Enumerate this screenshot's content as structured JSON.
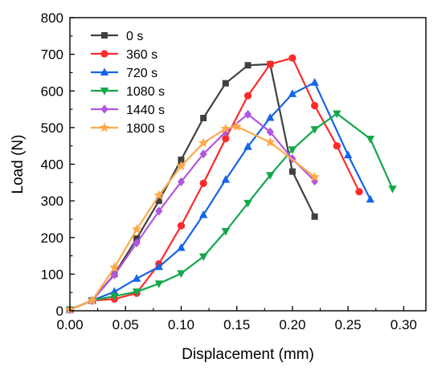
{
  "chart_data": {
    "type": "line",
    "xlabel": "Displacement (mm)",
    "ylabel": "Load (N)",
    "xlim": [
      0,
      0.32
    ],
    "ylim": [
      0,
      800
    ],
    "xticks": [
      "0.00",
      "0.05",
      "0.10",
      "0.15",
      "0.20",
      "0.25",
      "0.30"
    ],
    "yticks": [
      "0",
      "100",
      "200",
      "300",
      "400",
      "500",
      "600",
      "700",
      "800"
    ],
    "grid": false,
    "legend_position": "top-left",
    "series": [
      {
        "name": "0 s",
        "color": "#404040",
        "marker": "square",
        "x": [
          0,
          0.02,
          0.04,
          0.06,
          0.08,
          0.1,
          0.12,
          0.14,
          0.16,
          0.18,
          0.2,
          0.22
        ],
        "y": [
          3,
          28,
          100,
          197,
          300,
          412,
          526,
          621,
          670,
          673,
          380,
          257
        ]
      },
      {
        "name": "360 s",
        "color": "#ff2a2a",
        "marker": "circle",
        "x": [
          0,
          0.02,
          0.04,
          0.06,
          0.08,
          0.1,
          0.12,
          0.14,
          0.16,
          0.18,
          0.2,
          0.22,
          0.24,
          0.26
        ],
        "y": [
          3,
          28,
          32,
          48,
          128,
          232,
          348,
          470,
          587,
          673,
          690,
          560,
          450,
          325
        ]
      },
      {
        "name": "720 s",
        "color": "#1565e8",
        "marker": "triangle-up",
        "x": [
          0,
          0.02,
          0.04,
          0.06,
          0.08,
          0.1,
          0.12,
          0.14,
          0.16,
          0.18,
          0.2,
          0.22,
          0.25,
          0.27
        ],
        "y": [
          3,
          28,
          52,
          88,
          120,
          172,
          262,
          358,
          448,
          527,
          592,
          623,
          425,
          304
        ]
      },
      {
        "name": "1080 s",
        "color": "#12a84a",
        "marker": "triangle-down",
        "x": [
          0,
          0.02,
          0.04,
          0.06,
          0.08,
          0.1,
          0.12,
          0.14,
          0.16,
          0.18,
          0.2,
          0.22,
          0.24,
          0.27,
          0.29
        ],
        "y": [
          3,
          28,
          40,
          52,
          74,
          102,
          148,
          217,
          294,
          370,
          440,
          495,
          538,
          469,
          333
        ]
      },
      {
        "name": "1440 s",
        "color": "#b156e0",
        "marker": "diamond",
        "x": [
          0,
          0.02,
          0.04,
          0.06,
          0.08,
          0.1,
          0.12,
          0.14,
          0.16,
          0.18,
          0.2,
          0.22
        ],
        "y": [
          3,
          28,
          98,
          185,
          272,
          352,
          428,
          488,
          536,
          488,
          415,
          354
        ]
      },
      {
        "name": "1800 s",
        "color": "#ffa94a",
        "marker": "star",
        "x": [
          0,
          0.02,
          0.04,
          0.06,
          0.08,
          0.1,
          0.12,
          0.14,
          0.15,
          0.18,
          0.22
        ],
        "y": [
          3,
          28,
          118,
          222,
          315,
          395,
          458,
          497,
          503,
          460,
          365
        ]
      }
    ]
  }
}
